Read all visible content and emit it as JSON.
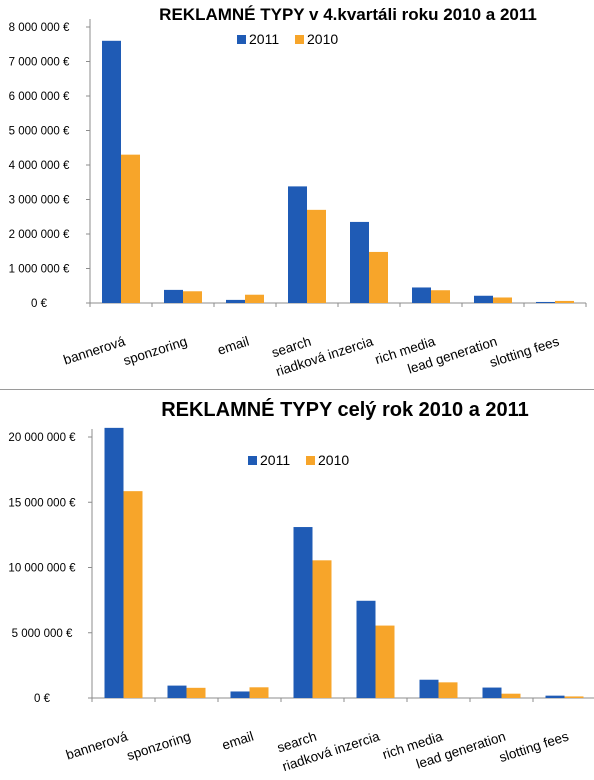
{
  "chart_data": [
    {
      "type": "bar",
      "title": "REKLAMNÉ TYPY v 4.kvartáli roku 2010 a 2011",
      "categories": [
        "bannerová",
        "sponzoring",
        "email",
        "search",
        "riadková inzercia",
        "rich media",
        "lead generation",
        "slotting fees"
      ],
      "series": [
        {
          "name": "2011",
          "color": "#1f5bb5",
          "values": [
            7600000,
            380000,
            90000,
            3380000,
            2350000,
            450000,
            210000,
            30000
          ]
        },
        {
          "name": "2010",
          "color": "#f7a52a",
          "values": [
            4300000,
            340000,
            240000,
            2700000,
            1480000,
            370000,
            160000,
            60000
          ]
        }
      ],
      "ylim": [
        0,
        8000000
      ],
      "yticks": [
        0,
        1000000,
        2000000,
        3000000,
        4000000,
        5000000,
        6000000,
        7000000,
        8000000
      ],
      "ytick_labels": [
        "0 €",
        "1 000 000 €",
        "2 000 000 €",
        "3 000 000 €",
        "4 000 000 €",
        "5 000 000 €",
        "6 000 000 €",
        "7 000 000 €",
        "8 000 000 €"
      ],
      "legend_position": "top-center",
      "grid": false
    },
    {
      "type": "bar",
      "title": "REKLAMNÉ TYPY celý rok 2010 a 2011",
      "categories": [
        "bannerová",
        "sponzoring",
        "email",
        "search",
        "riadková inzercia",
        "rich media",
        "lead generation",
        "slotting fees"
      ],
      "series": [
        {
          "name": "2011",
          "color": "#1f5bb5",
          "values": [
            20700000,
            950000,
            500000,
            13100000,
            7450000,
            1400000,
            800000,
            180000
          ]
        },
        {
          "name": "2010",
          "color": "#f7a52a",
          "values": [
            15850000,
            780000,
            820000,
            10550000,
            5550000,
            1200000,
            330000,
            120000
          ]
        }
      ],
      "ylim": [
        0,
        20000000
      ],
      "yticks": [
        0,
        5000000,
        10000000,
        15000000,
        20000000
      ],
      "ytick_labels": [
        "0 €",
        "5 000 000 €",
        "10 000 000 €",
        "15 000 000 €",
        "20 000 000 €"
      ],
      "legend_position": "top-center",
      "grid": false
    }
  ]
}
